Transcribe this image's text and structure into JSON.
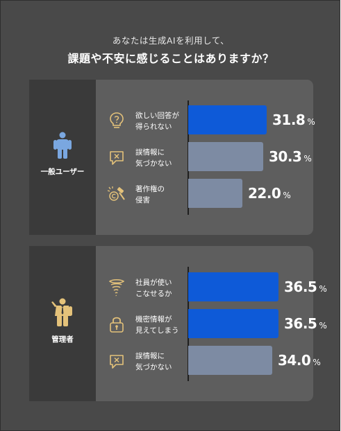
{
  "header": {
    "subtitle": "あなたは生成AIを利用して、",
    "title": "課題や不安に感じることはありますか？"
  },
  "colors": {
    "primary": "#0e5ad8",
    "secondary": "#7d8ba3",
    "icon": "#e4c27a"
  },
  "chart_data": [
    {
      "type": "bar",
      "group": "一般ユーザー",
      "categories": [
        "欲しい回答が得られない",
        "誤情報に気づかない",
        "著作権の侵害"
      ],
      "values": [
        31.8,
        30.3,
        22.0
      ],
      "value_labels": [
        "31.8",
        "30.3",
        "22.0"
      ],
      "unit": "%",
      "highlight": [
        true,
        false,
        false
      ],
      "icons": [
        "lightbulb-question-icon",
        "speech-bubble-x-icon",
        "copyright-gavel-icon"
      ]
    },
    {
      "type": "bar",
      "group": "管理者",
      "categories": [
        "社員が使いこなせるか",
        "機密情報が見えてしまう",
        "誤情報に気づかない"
      ],
      "values": [
        36.5,
        36.5,
        34.0
      ],
      "value_labels": [
        "36.5",
        "36.5",
        "34.0"
      ],
      "unit": "%",
      "highlight": [
        true,
        true,
        false
      ],
      "icons": [
        "tornado-icon",
        "padlock-icon",
        "speech-bubble-x-icon"
      ]
    }
  ],
  "groups": [
    {
      "label": "一般ユーザー",
      "rows": [
        {
          "label": "欲しい回答が\n得られない",
          "value": "31.8",
          "unit": "%"
        },
        {
          "label": "誤情報に\n気づかない",
          "value": "30.3",
          "unit": "%"
        },
        {
          "label": "著作権の\n侵害",
          "value": "22.0",
          "unit": "%"
        }
      ]
    },
    {
      "label": "管理者",
      "rows": [
        {
          "label": "社員が使い\nこなせるか",
          "value": "36.5",
          "unit": "%"
        },
        {
          "label": "機密情報が\n見えてしまう",
          "value": "36.5",
          "unit": "%"
        },
        {
          "label": "誤情報に\n気づかない",
          "value": "34.0",
          "unit": "%"
        }
      ]
    }
  ]
}
